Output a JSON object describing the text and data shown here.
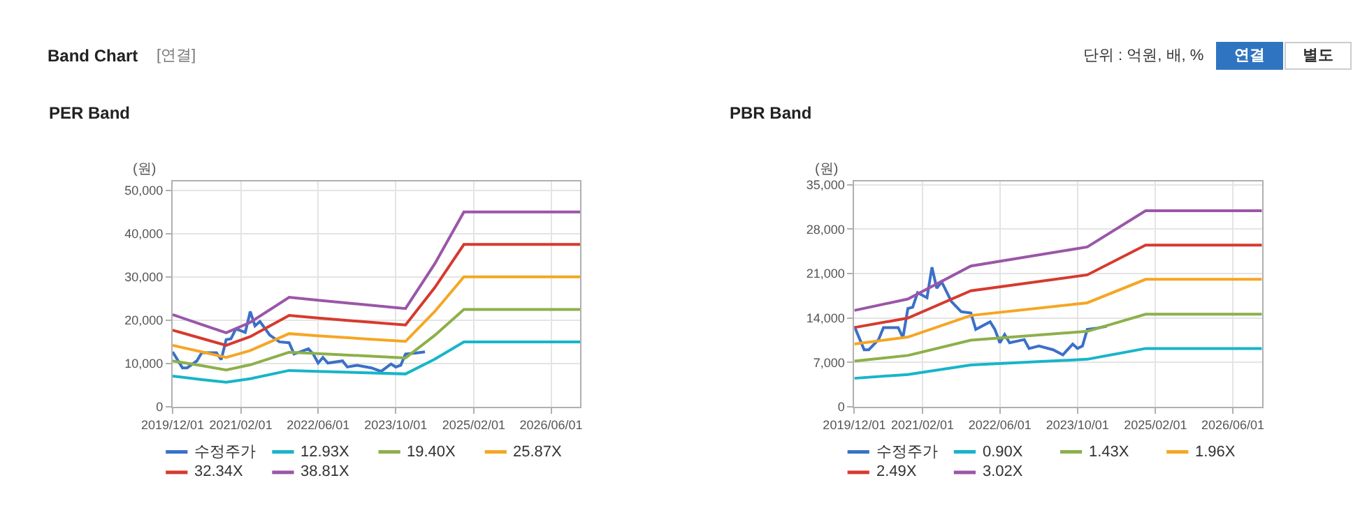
{
  "chart_data": [
    {
      "type": "line",
      "title": "PER Band",
      "ylabel": "(원)",
      "annotations": [
        "Band Chart",
        "[연결]",
        "단위 : 억원, 배, %",
        "연결",
        "별도"
      ],
      "xlim": [
        "2019-12-01",
        "2026-12-01"
      ],
      "xticks": [
        {
          "value": "2019-12-01",
          "label": "2019/12/01"
        },
        {
          "value": "2021-02-01",
          "label": "2021/02/01"
        },
        {
          "value": "2022-06-01",
          "label": "2022/06/01"
        },
        {
          "value": "2023-10-01",
          "label": "2023/10/01"
        },
        {
          "value": "2025-02-01",
          "label": "2025/02/01"
        },
        {
          "value": "2026-06-01",
          "label": "2026/06/01"
        }
      ],
      "ylim": [
        0,
        52000
      ],
      "yticks": [
        0,
        {
          "value": 10000,
          "label": "10,000"
        },
        {
          "value": 20000,
          "label": "20,000"
        },
        {
          "value": 30000,
          "label": "30,000"
        },
        {
          "value": 40000,
          "label": "40,000"
        },
        {
          "value": 50000,
          "label": "50,000"
        }
      ],
      "grid": true,
      "legend": "bottom",
      "marker": "none",
      "line_style": "solid",
      "series": [
        {
          "name": "수정주가",
          "color": "#3a70c8",
          "x": [
            "2019-12",
            "2020-02",
            "2020-03",
            "2020-05",
            "2020-06",
            "2020-09",
            "2020-10",
            "2020-11",
            "2020-12",
            "2021-01",
            "2021-03",
            "2021-04",
            "2021-05",
            "2021-06",
            "2021-08",
            "2021-10",
            "2021-12",
            "2022-01",
            "2022-04",
            "2022-05",
            "2022-06",
            "2022-07",
            "2022-08",
            "2022-11",
            "2022-12",
            "2023-02",
            "2023-05",
            "2023-07",
            "2023-09",
            "2023-10",
            "2023-11",
            "2023-12",
            "2024-02",
            "2024-04"
          ],
          "values": [
            12700,
            9000,
            9000,
            10600,
            12500,
            12500,
            10900,
            15500,
            15700,
            18000,
            17200,
            22000,
            18700,
            19700,
            16600,
            15000,
            14800,
            12200,
            13400,
            12200,
            10100,
            11400,
            10100,
            10600,
            9200,
            9600,
            9000,
            8200,
            9900,
            9200,
            9600,
            12200,
            12400,
            12700
          ]
        },
        {
          "name": "12.93X",
          "color": "#17b5c8",
          "x": [
            "2019-12",
            "2020-06",
            "2020-11",
            "2021-04",
            "2021-12",
            "2022-06",
            "2023-12",
            "2024-06",
            "2024-12",
            "2026-12"
          ],
          "values": [
            7100,
            6300,
            5700,
            6500,
            8400,
            8200,
            7600,
            11000,
            15000,
            15000
          ]
        },
        {
          "name": "19.40X",
          "color": "#8db04a",
          "x": [
            "2019-12",
            "2020-06",
            "2020-11",
            "2021-04",
            "2021-12",
            "2022-06",
            "2023-12",
            "2024-06",
            "2024-12",
            "2026-12"
          ],
          "values": [
            10600,
            9500,
            8500,
            9700,
            12600,
            12300,
            11300,
            16500,
            22500,
            22500
          ]
        },
        {
          "name": "25.87X",
          "color": "#f5a623",
          "x": [
            "2019-12",
            "2020-06",
            "2020-11",
            "2021-04",
            "2021-12",
            "2022-06",
            "2023-12",
            "2024-06",
            "2024-12",
            "2026-12"
          ],
          "values": [
            14200,
            12700,
            11400,
            13000,
            16900,
            16400,
            15100,
            22000,
            30000,
            30000
          ]
        },
        {
          "name": "32.34X",
          "color": "#d63a2e",
          "x": [
            "2019-12",
            "2020-06",
            "2020-11",
            "2021-04",
            "2021-12",
            "2022-06",
            "2023-12",
            "2024-06",
            "2024-12",
            "2026-12"
          ],
          "values": [
            17700,
            15800,
            14200,
            16200,
            21100,
            20500,
            18900,
            27500,
            37500,
            37500
          ]
        },
        {
          "name": "38.81X",
          "color": "#9a56a8",
          "x": [
            "2019-12",
            "2020-06",
            "2020-11",
            "2021-04",
            "2021-12",
            "2022-06",
            "2023-12",
            "2024-06",
            "2024-12",
            "2026-12"
          ],
          "values": [
            21300,
            19000,
            17100,
            19500,
            25300,
            24600,
            22700,
            33000,
            45000,
            45000
          ]
        }
      ]
    },
    {
      "type": "line",
      "title": "PBR Band",
      "ylabel": "(원)",
      "xlim": [
        "2019-12-01",
        "2026-12-01"
      ],
      "xticks": [
        {
          "value": "2019-12-01",
          "label": "2019/12/01"
        },
        {
          "value": "2021-02-01",
          "label": "2021/02/01"
        },
        {
          "value": "2022-06-01",
          "label": "2022/06/01"
        },
        {
          "value": "2023-10-01",
          "label": "2023/10/01"
        },
        {
          "value": "2025-02-01",
          "label": "2025/02/01"
        },
        {
          "value": "2026-06-01",
          "label": "2026/06/01"
        }
      ],
      "ylim": [
        0,
        35500
      ],
      "yticks": [
        0,
        {
          "value": 7000,
          "label": "7,000"
        },
        {
          "value": 14000,
          "label": "14,000"
        },
        {
          "value": 21000,
          "label": "21,000"
        },
        {
          "value": 28000,
          "label": "28,000"
        },
        {
          "value": 35000,
          "label": "35,000"
        }
      ],
      "grid": true,
      "legend": "bottom",
      "marker": "none",
      "line_style": "solid",
      "series": [
        {
          "name": "수정주가",
          "color": "#3a70c8",
          "x": [
            "2019-12",
            "2020-02",
            "2020-03",
            "2020-05",
            "2020-06",
            "2020-09",
            "2020-10",
            "2020-11",
            "2020-12",
            "2021-01",
            "2021-03",
            "2021-04",
            "2021-05",
            "2021-06",
            "2021-08",
            "2021-10",
            "2021-12",
            "2022-01",
            "2022-04",
            "2022-05",
            "2022-06",
            "2022-07",
            "2022-08",
            "2022-11",
            "2022-12",
            "2023-02",
            "2023-05",
            "2023-07",
            "2023-09",
            "2023-10",
            "2023-11",
            "2023-12",
            "2024-02",
            "2024-04"
          ],
          "values": [
            12700,
            9000,
            9000,
            10600,
            12500,
            12500,
            10900,
            15500,
            15700,
            18000,
            17200,
            22000,
            18700,
            19700,
            16600,
            15000,
            14800,
            12200,
            13400,
            12200,
            10100,
            11400,
            10100,
            10600,
            9200,
            9600,
            9000,
            8200,
            9900,
            9200,
            9600,
            12200,
            12400,
            12700
          ]
        },
        {
          "name": "0.90X",
          "color": "#17b5c8",
          "x": [
            "2019-12",
            "2020-11",
            "2021-12",
            "2023-12",
            "2024-12",
            "2026-12"
          ],
          "values": [
            4500,
            5100,
            6600,
            7500,
            9200,
            9200
          ]
        },
        {
          "name": "1.43X",
          "color": "#8db04a",
          "x": [
            "2019-12",
            "2020-11",
            "2021-12",
            "2023-12",
            "2024-12",
            "2026-12"
          ],
          "values": [
            7200,
            8100,
            10500,
            11900,
            14600,
            14600
          ]
        },
        {
          "name": "1.96X",
          "color": "#f5a623",
          "x": [
            "2019-12",
            "2020-11",
            "2021-12",
            "2023-12",
            "2024-12",
            "2026-12"
          ],
          "values": [
            9900,
            11000,
            14400,
            16400,
            20100,
            20100
          ]
        },
        {
          "name": "2.49X",
          "color": "#d63a2e",
          "x": [
            "2019-12",
            "2020-11",
            "2021-12",
            "2023-12",
            "2024-12",
            "2026-12"
          ],
          "values": [
            12500,
            14000,
            18300,
            20800,
            25500,
            25500
          ]
        },
        {
          "name": "3.02X",
          "color": "#9a56a8",
          "x": [
            "2019-12",
            "2020-11",
            "2021-12",
            "2023-12",
            "2024-12",
            "2026-12"
          ],
          "values": [
            15200,
            17000,
            22200,
            25200,
            30900,
            30900
          ]
        }
      ]
    }
  ]
}
